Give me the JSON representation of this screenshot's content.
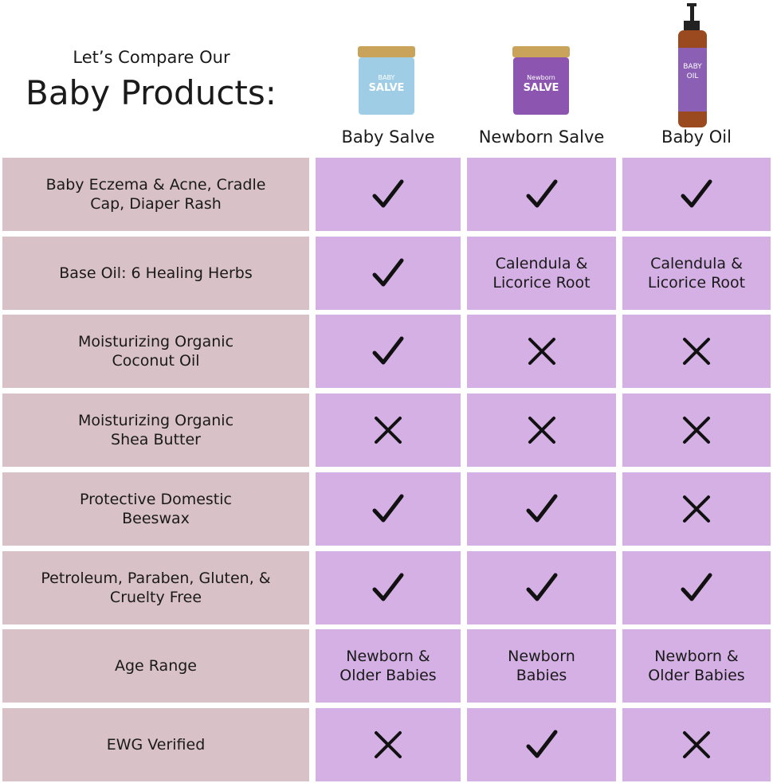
{
  "header": {
    "intro": "Let’s Compare Our",
    "title": "Baby Products:"
  },
  "products": [
    {
      "name": "Baby Salve",
      "label": [
        "BABY",
        "SALVE"
      ]
    },
    {
      "name": "Newborn Salve",
      "label": [
        "Newborn",
        "SALVE"
      ]
    },
    {
      "name": "Baby Oil",
      "label": [
        "BABY",
        "OIL"
      ]
    }
  ],
  "table": {
    "rows": [
      {
        "feature": [
          "Baby Eczema & Acne, Cradle",
          "Cap, Diaper Rash"
        ],
        "cells": [
          true,
          true,
          true
        ]
      },
      {
        "feature": [
          "Base Oil: 6 Healing Herbs"
        ],
        "cells": [
          true,
          [
            "Calendula &",
            "Licorice Root"
          ],
          [
            "Calendula &",
            "Licorice Root"
          ]
        ]
      },
      {
        "feature": [
          "Moisturizing Organic",
          "Coconut Oil"
        ],
        "cells": [
          true,
          false,
          false
        ]
      },
      {
        "feature": [
          "Moisturizing Organic",
          "Shea Butter"
        ],
        "cells": [
          false,
          false,
          false
        ]
      },
      {
        "feature": [
          "Protective Domestic",
          "Beeswax"
        ],
        "cells": [
          true,
          true,
          false
        ]
      },
      {
        "feature": [
          "Petroleum, Paraben, Gluten, &",
          "Cruelty Free"
        ],
        "cells": [
          true,
          true,
          true
        ]
      },
      {
        "feature": [
          "Age Range"
        ],
        "cells": [
          [
            "Newborn &",
            "Older Babies"
          ],
          [
            "Newborn",
            "Babies"
          ],
          [
            "Newborn &",
            "Older Babies"
          ]
        ]
      },
      {
        "feature": [
          "EWG Verified"
        ],
        "cells": [
          false,
          true,
          false
        ]
      }
    ]
  }
}
